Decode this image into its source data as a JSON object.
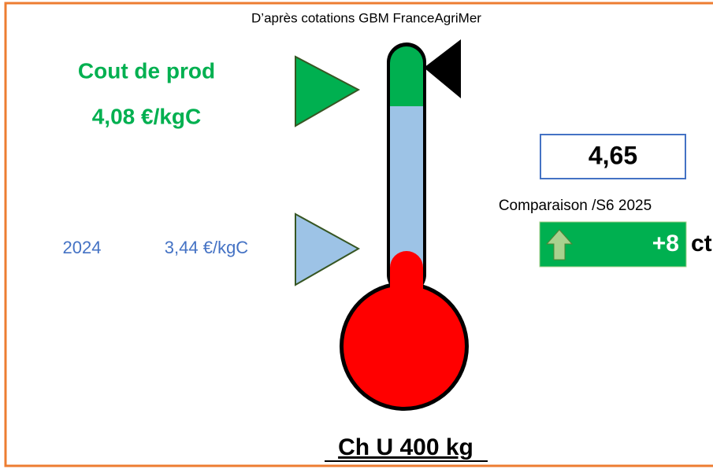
{
  "source": "D’après cotations GBM FranceAgriMer",
  "cost": {
    "label": "Cout de prod",
    "value": "4,08 €/kgC"
  },
  "previous": {
    "year": "2024",
    "value": "3,44 €/kgC"
  },
  "current": {
    "value": "4,65"
  },
  "comparison": {
    "label": "Comparaison /S6 2025",
    "change": "+8",
    "unit": "ct"
  },
  "footer": "Ch U 400 kg"
}
